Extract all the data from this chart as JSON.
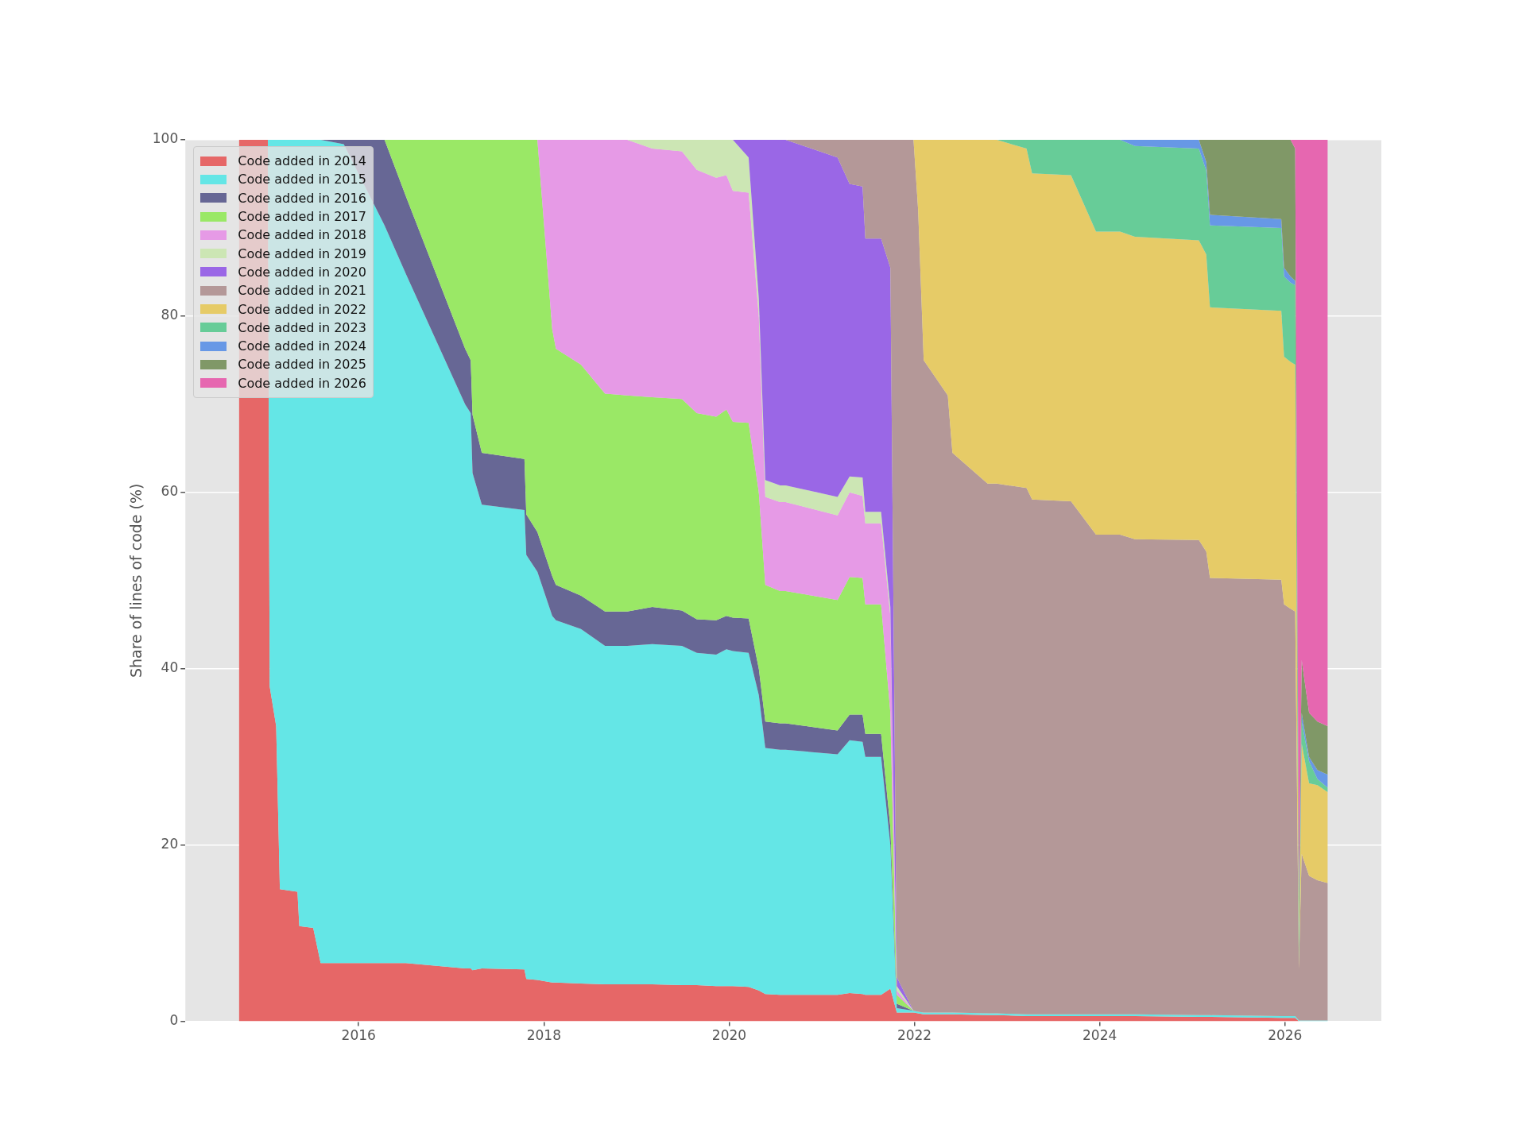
{
  "chart_data": {
    "type": "area",
    "stacked": true,
    "ylabel": "Share of lines of code (%)",
    "xlim": [
      2014.13,
      2027.04
    ],
    "xticks": [
      2016,
      2018,
      2020,
      2022,
      2024,
      2026
    ],
    "ylim": [
      0,
      100
    ],
    "yticks": [
      0,
      20,
      40,
      60,
      80,
      100
    ],
    "grid": "y",
    "legend": "top left",
    "x": [
      2014.71,
      2015.02,
      2015.04,
      2015.11,
      2015.15,
      2015.34,
      2015.36,
      2015.51,
      2015.59,
      2015.84,
      2016.28,
      2016.51,
      2017.15,
      2017.21,
      2017.23,
      2017.33,
      2017.79,
      2017.81,
      2017.93,
      2018.09,
      2018.13,
      2018.4,
      2018.66,
      2018.9,
      2019.17,
      2019.49,
      2019.65,
      2019.86,
      2019.97,
      2020.04,
      2020.21,
      2020.32,
      2020.39,
      2020.55,
      2020.61,
      2021.17,
      2021.3,
      2021.44,
      2021.47,
      2021.64,
      2021.74,
      2021.81,
      2021.99,
      2022.04,
      2022.1,
      2022.36,
      2022.41,
      2022.79,
      2022.89,
      2023.21,
      2023.27,
      2023.69,
      2023.96,
      2024.22,
      2024.38,
      2025.07,
      2025.15,
      2025.19,
      2025.96,
      2025.99,
      2026.06,
      2026.11,
      2026.15,
      2026.18,
      2026.26,
      2026.35,
      2026.46
    ],
    "series": [
      {
        "name": "Code added in 2014",
        "color": "#e66767",
        "values": [
          100,
          100,
          38,
          33.5,
          15,
          14.7,
          10.8,
          10.6,
          6.6,
          6.6,
          6.6,
          6.6,
          6.0,
          6.0,
          5.8,
          6.0,
          5.9,
          4.8,
          4.7,
          4.4,
          4.4,
          4.3,
          4.2,
          4.2,
          4.2,
          4.1,
          4.1,
          4.0,
          4.0,
          4.0,
          3.9,
          3.5,
          3.1,
          3.0,
          3.0,
          3.0,
          3.2,
          3.1,
          3.0,
          3.0,
          3.7,
          1.0,
          1.0,
          0.9,
          0.8,
          0.8,
          0.8,
          0.7,
          0.7,
          0.6,
          0.6,
          0.6,
          0.6,
          0.6,
          0.6,
          0.5,
          0.5,
          0.5,
          0.4,
          0.4,
          0.4,
          0.4,
          0,
          0,
          0,
          0,
          0
        ]
      },
      {
        "name": "Code added in 2015",
        "color": "#64e6e6",
        "values": [
          null,
          0,
          62,
          66.5,
          85,
          85.3,
          89.2,
          89.4,
          93.4,
          92.9,
          83.7,
          78.2,
          64,
          63,
          56.4,
          52.6,
          52.1,
          48.1,
          46.3,
          41.6,
          41.1,
          40.2,
          38.4,
          38.4,
          38.6,
          38.5,
          37.7,
          37.6,
          38.2,
          38.0,
          37.9,
          33.5,
          27.9,
          27.8,
          27.8,
          27.3,
          28.7,
          28.6,
          27.0,
          27.0,
          16.3,
          0.5,
          0.2,
          0.2,
          0.2,
          0.2,
          0.2,
          0.2,
          0.2,
          0.2,
          0.2,
          0.2,
          0.2,
          0.2,
          0.2,
          0.2,
          0.2,
          0.2,
          0.2,
          0.2,
          0.2,
          0.2,
          0.1,
          0.1,
          0.1,
          0.1,
          0.1
        ]
      },
      {
        "name": "Code added in 2016",
        "color": "#676795",
        "values": [
          null,
          null,
          null,
          null,
          null,
          null,
          null,
          null,
          0,
          0.5,
          9.7,
          8.8,
          6.3,
          6,
          6.6,
          5.9,
          5.8,
          4.6,
          4.5,
          4.5,
          4.0,
          3.8,
          3.9,
          3.9,
          4.2,
          4.0,
          3.8,
          3.9,
          3.8,
          3.8,
          3.9,
          3,
          3.0,
          3.0,
          3.0,
          2.7,
          2.9,
          3.1,
          2.6,
          2.6,
          2.0,
          0.5,
          0,
          null,
          null,
          null,
          null,
          null,
          null,
          null,
          null,
          null,
          null,
          null,
          null,
          null,
          null,
          null,
          null,
          null,
          null,
          null,
          null,
          null,
          null,
          null,
          null
        ]
      },
      {
        "name": "Code added in 2017",
        "color": "#9ae866",
        "values": [
          null,
          null,
          null,
          null,
          null,
          null,
          null,
          null,
          null,
          null,
          0,
          6.4,
          23.7,
          25,
          31.2,
          35.5,
          36.2,
          42.5,
          44.5,
          28,
          26.8,
          26.2,
          24.7,
          24.5,
          23.8,
          24.0,
          23.4,
          23.1,
          23.4,
          22.2,
          22.2,
          20,
          15.5,
          15.0,
          15.0,
          14.8,
          15.6,
          15.5,
          14.7,
          14.7,
          13.0,
          1.0,
          0,
          null,
          null,
          null,
          null,
          null,
          null,
          null,
          null,
          null,
          null,
          null,
          null,
          null,
          null,
          null,
          null,
          null,
          null,
          null,
          null,
          null,
          null,
          null,
          null
        ]
      },
      {
        "name": "Code added in 2018",
        "color": "#e69ae6",
        "values": [
          null,
          null,
          null,
          null,
          null,
          null,
          null,
          null,
          null,
          null,
          null,
          null,
          null,
          null,
          null,
          null,
          null,
          null,
          0,
          21.5,
          23.7,
          25.5,
          28.8,
          29,
          28.2,
          28.1,
          27.6,
          27.1,
          26.6,
          26.2,
          26.1,
          20,
          10.0,
          10.1,
          10.1,
          9.6,
          9.6,
          9.3,
          9.2,
          9.2,
          11.0,
          0.5,
          0,
          null,
          null,
          null,
          null,
          null,
          null,
          null,
          null,
          null,
          null,
          null,
          null,
          null,
          null,
          null,
          null,
          null,
          null,
          null,
          null,
          null,
          null,
          null,
          null
        ]
      },
      {
        "name": "Code added in 2019",
        "color": "#cce6b4",
        "values": [
          null,
          null,
          null,
          null,
          null,
          null,
          null,
          null,
          null,
          null,
          null,
          null,
          null,
          null,
          null,
          null,
          null,
          null,
          null,
          null,
          null,
          null,
          null,
          0,
          1.0,
          1.3,
          3.4,
          4.3,
          4.0,
          5.8,
          4.0,
          2,
          1.9,
          1.9,
          1.9,
          2.1,
          1.8,
          2.1,
          1.3,
          1.3,
          1.0,
          0.5,
          0,
          null,
          null,
          null,
          null,
          null,
          null,
          null,
          null,
          null,
          null,
          null,
          null,
          null,
          null,
          null,
          null,
          null,
          null,
          null,
          null,
          null,
          null,
          null,
          null
        ]
      },
      {
        "name": "Code added in 2020",
        "color": "#9a67e6",
        "values": [
          null,
          null,
          null,
          null,
          null,
          null,
          null,
          null,
          null,
          null,
          null,
          null,
          null,
          null,
          null,
          null,
          null,
          null,
          null,
          null,
          null,
          null,
          null,
          null,
          null,
          null,
          null,
          null,
          null,
          0,
          2.0,
          18,
          38.6,
          39.2,
          39.2,
          38.5,
          33.2,
          33.0,
          31.0,
          31.0,
          38.5,
          1.0,
          0,
          null,
          null,
          null,
          null,
          null,
          null,
          null,
          null,
          null,
          null,
          null,
          null,
          null,
          null,
          null,
          null,
          null,
          null,
          null,
          null,
          null,
          null,
          null,
          null
        ]
      },
      {
        "name": "Code added in 2021",
        "color": "#b49898",
        "values": [
          null,
          null,
          null,
          null,
          null,
          null,
          null,
          null,
          null,
          null,
          null,
          null,
          null,
          null,
          null,
          null,
          null,
          null,
          null,
          null,
          null,
          null,
          null,
          null,
          null,
          null,
          null,
          null,
          null,
          null,
          null,
          null,
          null,
          null,
          0,
          2.0,
          5.0,
          5.3,
          11.2,
          11.2,
          14.5,
          95.0,
          98.8,
          90.9,
          74.0,
          70.0,
          63.5,
          60.1,
          60.1,
          59.7,
          58.4,
          58.2,
          54.4,
          54.4,
          53.9,
          53.9,
          52.6,
          49.6,
          49.5,
          46.7,
          46.2,
          45.9,
          5.9,
          18.9,
          16.4,
          15.9,
          15.6
        ]
      },
      {
        "name": "Code added in 2022",
        "color": "#e6cb67",
        "values": [
          null,
          null,
          null,
          null,
          null,
          null,
          null,
          null,
          null,
          null,
          null,
          null,
          null,
          null,
          null,
          null,
          null,
          null,
          null,
          null,
          null,
          null,
          null,
          null,
          null,
          null,
          null,
          null,
          null,
          null,
          null,
          null,
          null,
          null,
          null,
          null,
          null,
          null,
          null,
          null,
          null,
          null,
          0,
          8.0,
          25.0,
          29.0,
          35.5,
          39.0,
          39.0,
          38.5,
          37.0,
          37.0,
          34.4,
          34.4,
          34.3,
          34.0,
          33.7,
          30.7,
          30.5,
          28.1,
          28.0,
          28.0,
          0.5,
          12.5,
          10.5,
          10.8,
          10.3
        ]
      },
      {
        "name": "Code added in 2023",
        "color": "#67cc98",
        "values": [
          null,
          null,
          null,
          null,
          null,
          null,
          null,
          null,
          null,
          null,
          null,
          null,
          null,
          null,
          null,
          null,
          null,
          null,
          null,
          null,
          null,
          null,
          null,
          null,
          null,
          null,
          null,
          null,
          null,
          null,
          null,
          null,
          null,
          null,
          null,
          null,
          null,
          null,
          null,
          null,
          null,
          null,
          null,
          null,
          null,
          null,
          null,
          null,
          0,
          1.0,
          3.8,
          4.0,
          10.4,
          10.4,
          10.3,
          10.4,
          9.5,
          9.3,
          9.4,
          9.1,
          9.0,
          9.0,
          3.5,
          2.5,
          2.5,
          0.7,
          0.5
        ]
      },
      {
        "name": "Code added in 2024",
        "color": "#6798e6",
        "values": [
          null,
          null,
          null,
          null,
          null,
          null,
          null,
          null,
          null,
          null,
          null,
          null,
          null,
          null,
          null,
          null,
          null,
          null,
          null,
          null,
          null,
          null,
          null,
          null,
          null,
          null,
          null,
          null,
          null,
          null,
          null,
          null,
          null,
          null,
          null,
          null,
          null,
          null,
          null,
          null,
          null,
          null,
          null,
          null,
          null,
          null,
          null,
          null,
          null,
          null,
          null,
          null,
          null,
          0,
          0.7,
          1.0,
          1.0,
          1.2,
          1.0,
          1.0,
          0.7,
          0.5,
          1.0,
          1.0,
          0.5,
          1.0,
          1.5
        ]
      },
      {
        "name": "Code added in 2025",
        "color": "#809867",
        "values": [
          null,
          null,
          null,
          null,
          null,
          null,
          null,
          null,
          null,
          null,
          null,
          null,
          null,
          null,
          null,
          null,
          null,
          null,
          null,
          null,
          null,
          null,
          null,
          null,
          null,
          null,
          null,
          null,
          null,
          null,
          null,
          null,
          null,
          null,
          null,
          null,
          null,
          null,
          null,
          null,
          null,
          null,
          null,
          null,
          null,
          null,
          null,
          null,
          null,
          null,
          null,
          null,
          null,
          null,
          null,
          0,
          2.5,
          8.5,
          9.0,
          14.5,
          15.5,
          15.0,
          3.0,
          6.0,
          5.0,
          5.5,
          5.5
        ]
      },
      {
        "name": "Code added in 2026",
        "color": "#e667b0",
        "values": [
          null,
          null,
          null,
          null,
          null,
          null,
          null,
          null,
          null,
          null,
          null,
          null,
          null,
          null,
          null,
          null,
          null,
          null,
          null,
          null,
          null,
          null,
          null,
          null,
          null,
          null,
          null,
          null,
          null,
          null,
          null,
          null,
          null,
          null,
          null,
          null,
          null,
          null,
          null,
          null,
          null,
          null,
          null,
          null,
          null,
          null,
          null,
          null,
          null,
          null,
          null,
          null,
          null,
          null,
          null,
          null,
          null,
          null,
          null,
          null,
          0,
          1.0,
          86.0,
          59.0,
          65.0,
          66.0,
          66.5
        ]
      }
    ]
  }
}
